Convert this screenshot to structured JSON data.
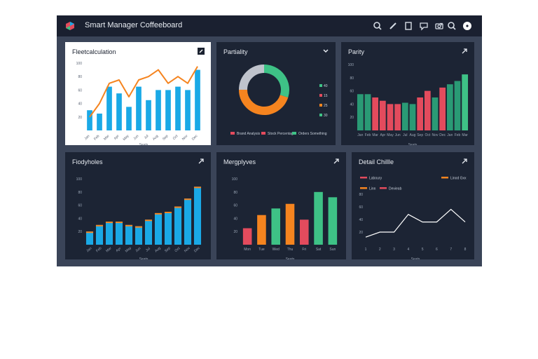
{
  "header": {
    "title": "Smart Manager Coffeeboard",
    "icons": [
      "search-icon",
      "caret-down-icon",
      "pen-icon",
      "document-icon",
      "chat-icon",
      "camera-icon",
      "search-icon",
      "user-icon"
    ]
  },
  "colors": {
    "frame": "#3a4458",
    "panel": "#1c2434",
    "header": "#1a2030",
    "blue": "#1aa9e6",
    "orange": "#f5841f",
    "green": "#3ec286",
    "red": "#e34b5d",
    "teal": "#2a9a75",
    "gray": "#bfc3cc"
  },
  "panels": {
    "p1": {
      "title": "Fleetcalculation",
      "chart_data": {
        "type": "bar+line",
        "categories": [
          "Jan",
          "Feb",
          "Mar",
          "Apr",
          "May",
          "Jun",
          "Jul",
          "Aug",
          "Sep",
          "Oct",
          "Nov",
          "Dec"
        ],
        "series": [
          {
            "kind": "bar",
            "values": [
              30,
              25,
              65,
              55,
              35,
              65,
              45,
              60,
              60,
              65,
              60,
              90
            ]
          },
          {
            "kind": "line",
            "values": [
              20,
              40,
              70,
              75,
              50,
              75,
              80,
              90,
              70,
              80,
              70,
              95
            ]
          }
        ],
        "ylim": [
          0,
          100
        ],
        "yticks": [
          "20",
          "40",
          "60",
          "80",
          "100"
        ],
        "xlabel": "Seats"
      }
    },
    "p2": {
      "title": "Partiality",
      "chart_data": {
        "type": "pie",
        "slices": [
          {
            "label": "Brand",
            "value": 30,
            "color": "#3ec286"
          },
          {
            "label": "Stock",
            "value": 45,
            "color": "#f5841f"
          },
          {
            "label": "Others",
            "value": 25,
            "color": "#bfc3cc"
          }
        ],
        "side_legend": [
          "40",
          "15",
          "25",
          "30"
        ],
        "legend": [
          {
            "label": "Brand Analysis",
            "color": "#e34b5d"
          },
          {
            "label": "Stock Percentage",
            "color": "#e34b5d"
          },
          {
            "label": "Orders Something",
            "color": "#3ec286"
          }
        ]
      }
    },
    "p3": {
      "title": "Parity",
      "chart_data": {
        "type": "bar",
        "categories": [
          "Jan",
          "Feb",
          "Mar",
          "Apr",
          "May",
          "Jun",
          "Jul",
          "Aug",
          "Sep",
          "Oct",
          "Nov",
          "Dec",
          "Jan",
          "Feb",
          "Mar"
        ],
        "values": [
          55,
          55,
          50,
          45,
          40,
          40,
          42,
          40,
          50,
          60,
          50,
          65,
          70,
          75,
          85
        ],
        "colors": [
          "#2a9a75",
          "#2a9a75",
          "#e34b5d",
          "#e34b5d",
          "#e34b5d",
          "#e34b5d",
          "#2a9a75",
          "#2a9a75",
          "#e34b5d",
          "#e34b5d",
          "#2a9a75",
          "#e34b5d",
          "#2a9a75",
          "#2a9a75",
          "#3ec286"
        ],
        "ylim": [
          0,
          100
        ],
        "yticks": [
          "20",
          "40",
          "60",
          "80",
          "100"
        ],
        "xlabel": "Seats"
      }
    },
    "p4": {
      "title": "Fiodyholes",
      "chart_data": {
        "type": "bar",
        "categories": [
          "Jan",
          "Feb",
          "Mar",
          "Apr",
          "May",
          "Jun",
          "Jul",
          "Aug",
          "Sep",
          "Oct",
          "Nov",
          "Dec"
        ],
        "values": [
          20,
          30,
          35,
          35,
          30,
          28,
          38,
          48,
          50,
          58,
          70,
          88
        ],
        "ylim": [
          0,
          100
        ],
        "yticks": [
          "20",
          "40",
          "60",
          "80",
          "100"
        ],
        "xlabel": "Seats"
      }
    },
    "p5": {
      "title": "Mergplyves",
      "chart_data": {
        "type": "bar",
        "categories": [
          "Mon",
          "Tue",
          "Wed",
          "Thu",
          "Fri",
          "Sat",
          "Sun"
        ],
        "values": [
          25,
          45,
          55,
          62,
          38,
          80,
          72
        ],
        "colors": [
          "#e34b5d",
          "#f5841f",
          "#3ec286",
          "#f5841f",
          "#e34b5d",
          "#3ec286",
          "#3ec286"
        ],
        "ylim": [
          0,
          100
        ],
        "yticks": [
          "20",
          "40",
          "60",
          "80",
          "100"
        ],
        "xlabel": "Seats"
      }
    },
    "p6": {
      "title": "Detail Chillle",
      "chart_data": {
        "type": "line",
        "categories": [
          "1",
          "2",
          "3",
          "4",
          "5",
          "6",
          "7",
          "8"
        ],
        "values": [
          15,
          25,
          25,
          60,
          45,
          45,
          70,
          45
        ],
        "ylim": [
          0,
          100
        ],
        "yticks": [
          "20",
          "40",
          "60",
          "80"
        ],
        "xlabel": "Seats",
        "legend": [
          {
            "label": "Laboury",
            "color": "#e34b5d"
          },
          {
            "label": "Linn",
            "color": "#f5841f"
          },
          {
            "label": "Devieab",
            "color": "#e34b5d"
          },
          {
            "label": "Linod Gxx",
            "color": "#f5841f"
          }
        ]
      }
    }
  }
}
